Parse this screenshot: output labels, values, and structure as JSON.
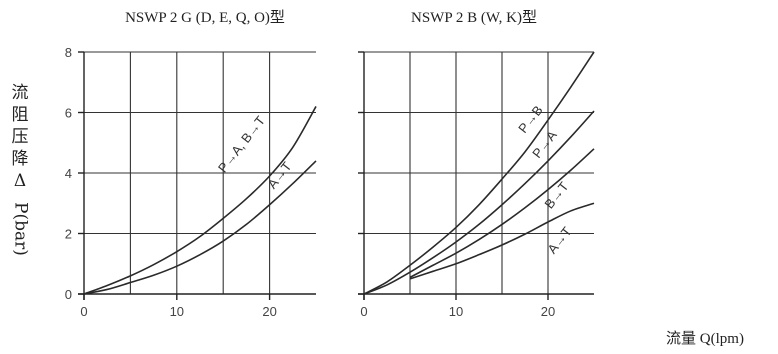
{
  "ylabel": "流阻压降ΔP(bar)",
  "xlabel": "流量 Q(lpm)",
  "chart_data": [
    {
      "type": "line",
      "title": "NSWP 2 G (D, E, Q, O)型",
      "xlim": [
        0,
        25
      ],
      "ylim": [
        0,
        8
      ],
      "xticks": [
        0,
        10,
        20
      ],
      "xtick_labels": [
        "0",
        "10",
        "20"
      ],
      "yticks": [
        0,
        2,
        4,
        6,
        8
      ],
      "ytick_labels": [
        "0",
        "2",
        "4",
        "6",
        "8"
      ],
      "grid": true,
      "series": [
        {
          "name": "P→A, B→T",
          "x": [
            0,
            2.5,
            5,
            7.5,
            10,
            12.5,
            15,
            17.5,
            20,
            22.5,
            25
          ],
          "y": [
            0,
            0.28,
            0.6,
            0.97,
            1.4,
            1.9,
            2.5,
            3.15,
            3.9,
            4.85,
            6.2
          ]
        },
        {
          "name": "A→T",
          "x": [
            0,
            2.5,
            5,
            7.5,
            10,
            12.5,
            15,
            17.5,
            20,
            22.5,
            25
          ],
          "y": [
            0,
            0.15,
            0.38,
            0.62,
            0.92,
            1.3,
            1.75,
            2.3,
            2.95,
            3.65,
            4.4
          ]
        }
      ],
      "annotations": [
        "P→A, B→T",
        "A→T"
      ]
    },
    {
      "type": "line",
      "title": "NSWP 2 B (W, K)型",
      "xlim": [
        0,
        25
      ],
      "ylim": [
        0,
        8
      ],
      "xticks": [
        0,
        10,
        20
      ],
      "xtick_labels": [
        "0",
        "10",
        "20"
      ],
      "yticks": [
        0,
        2,
        4,
        6,
        8
      ],
      "grid": true,
      "series": [
        {
          "name": "P→B",
          "x": [
            0,
            2.5,
            5,
            7.5,
            10,
            12.5,
            15,
            17.5,
            20,
            22.5,
            25
          ],
          "y": [
            0,
            0.4,
            0.95,
            1.55,
            2.2,
            2.95,
            3.8,
            4.7,
            5.75,
            6.85,
            8.0
          ]
        },
        {
          "name": "P→A",
          "x": [
            0,
            2.5,
            5,
            7.5,
            10,
            12.5,
            15,
            17.5,
            20,
            22.5,
            25
          ],
          "y": [
            0,
            0.3,
            0.72,
            1.2,
            1.72,
            2.3,
            2.95,
            3.65,
            4.4,
            5.2,
            6.05
          ]
        },
        {
          "name": "B→T",
          "x": [
            5,
            7.5,
            10,
            12.5,
            15,
            17.5,
            20,
            22.5,
            25
          ],
          "y": [
            0.55,
            0.95,
            1.35,
            1.8,
            2.3,
            2.85,
            3.45,
            4.1,
            4.8
          ]
        },
        {
          "name": "A→T",
          "x": [
            5,
            7.5,
            10,
            12.5,
            15,
            17.5,
            20,
            22.5,
            25
          ],
          "y": [
            0.5,
            0.75,
            1.0,
            1.3,
            1.62,
            1.98,
            2.38,
            2.75,
            3.0
          ]
        }
      ],
      "annotations": [
        "P→B",
        "P→A",
        "B→T",
        "A→T"
      ]
    }
  ]
}
